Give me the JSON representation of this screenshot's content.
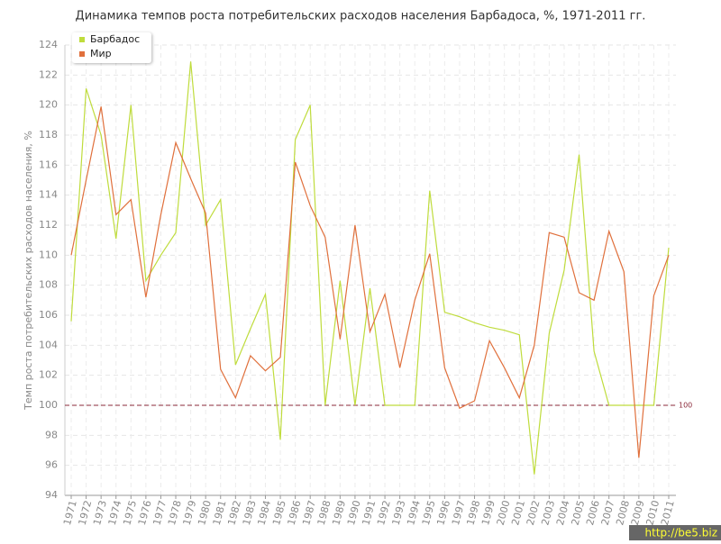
{
  "chart_data": {
    "type": "line",
    "title": "Динамика темпов роста потребительских расходов населения Барбадоса, %, 1971-2011 гг.",
    "y_label": "Темп роста потребительских расходов населения, %",
    "categories": [
      "1971",
      "1972",
      "1973",
      "1974",
      "1975",
      "1976",
      "1977",
      "1978",
      "1979",
      "1980",
      "1981",
      "1982",
      "1983",
      "1984",
      "1985",
      "1986",
      "1987",
      "1988",
      "1989",
      "1990",
      "1991",
      "1992",
      "1993",
      "1994",
      "1995",
      "1996",
      "1997",
      "1998",
      "1999",
      "2000",
      "2001",
      "2002",
      "2003",
      "2004",
      "2005",
      "2006",
      "2007",
      "2008",
      "2009",
      "2010",
      "2011"
    ],
    "series": [
      {
        "name": "Барбадос",
        "color": "#bfdc3c",
        "values": [
          105.6,
          121.1,
          118.0,
          111.1,
          120.0,
          108.3,
          110.0,
          111.5,
          122.9,
          112.0,
          113.7,
          102.7,
          105.1,
          107.4,
          97.7,
          117.7,
          120.0,
          100.0,
          108.3,
          100.0,
          107.8,
          100.0,
          100.0,
          100.0,
          114.3,
          106.2,
          105.9,
          105.5,
          105.2,
          105.0,
          104.7,
          95.4,
          104.8,
          109.0,
          116.7,
          103.6,
          100.0,
          100.0,
          100.0,
          100.0,
          110.5
        ]
      },
      {
        "name": "Мир",
        "color": "#e0703c",
        "values": [
          110.0,
          115.0,
          119.9,
          112.7,
          113.7,
          107.2,
          112.7,
          117.5,
          115.1,
          112.8,
          102.4,
          100.5,
          103.3,
          102.3,
          103.2,
          116.2,
          113.3,
          111.2,
          104.4,
          112.0,
          104.9,
          107.4,
          102.5,
          107.0,
          110.1,
          102.5,
          99.8,
          100.3,
          104.3,
          102.5,
          100.5,
          104.0,
          111.5,
          111.2,
          107.5,
          107.0,
          111.6,
          108.9,
          96.5,
          107.3,
          110.0
        ]
      }
    ],
    "ylim": [
      94,
      124
    ],
    "yticks": [
      94,
      96,
      98,
      100,
      102,
      104,
      106,
      108,
      110,
      112,
      114,
      116,
      118,
      120,
      122,
      124
    ],
    "grid": true,
    "reference_line": 100,
    "reference_color": "#8b2a3a",
    "legend": "top-left",
    "watermark": "http://be5.biz"
  }
}
